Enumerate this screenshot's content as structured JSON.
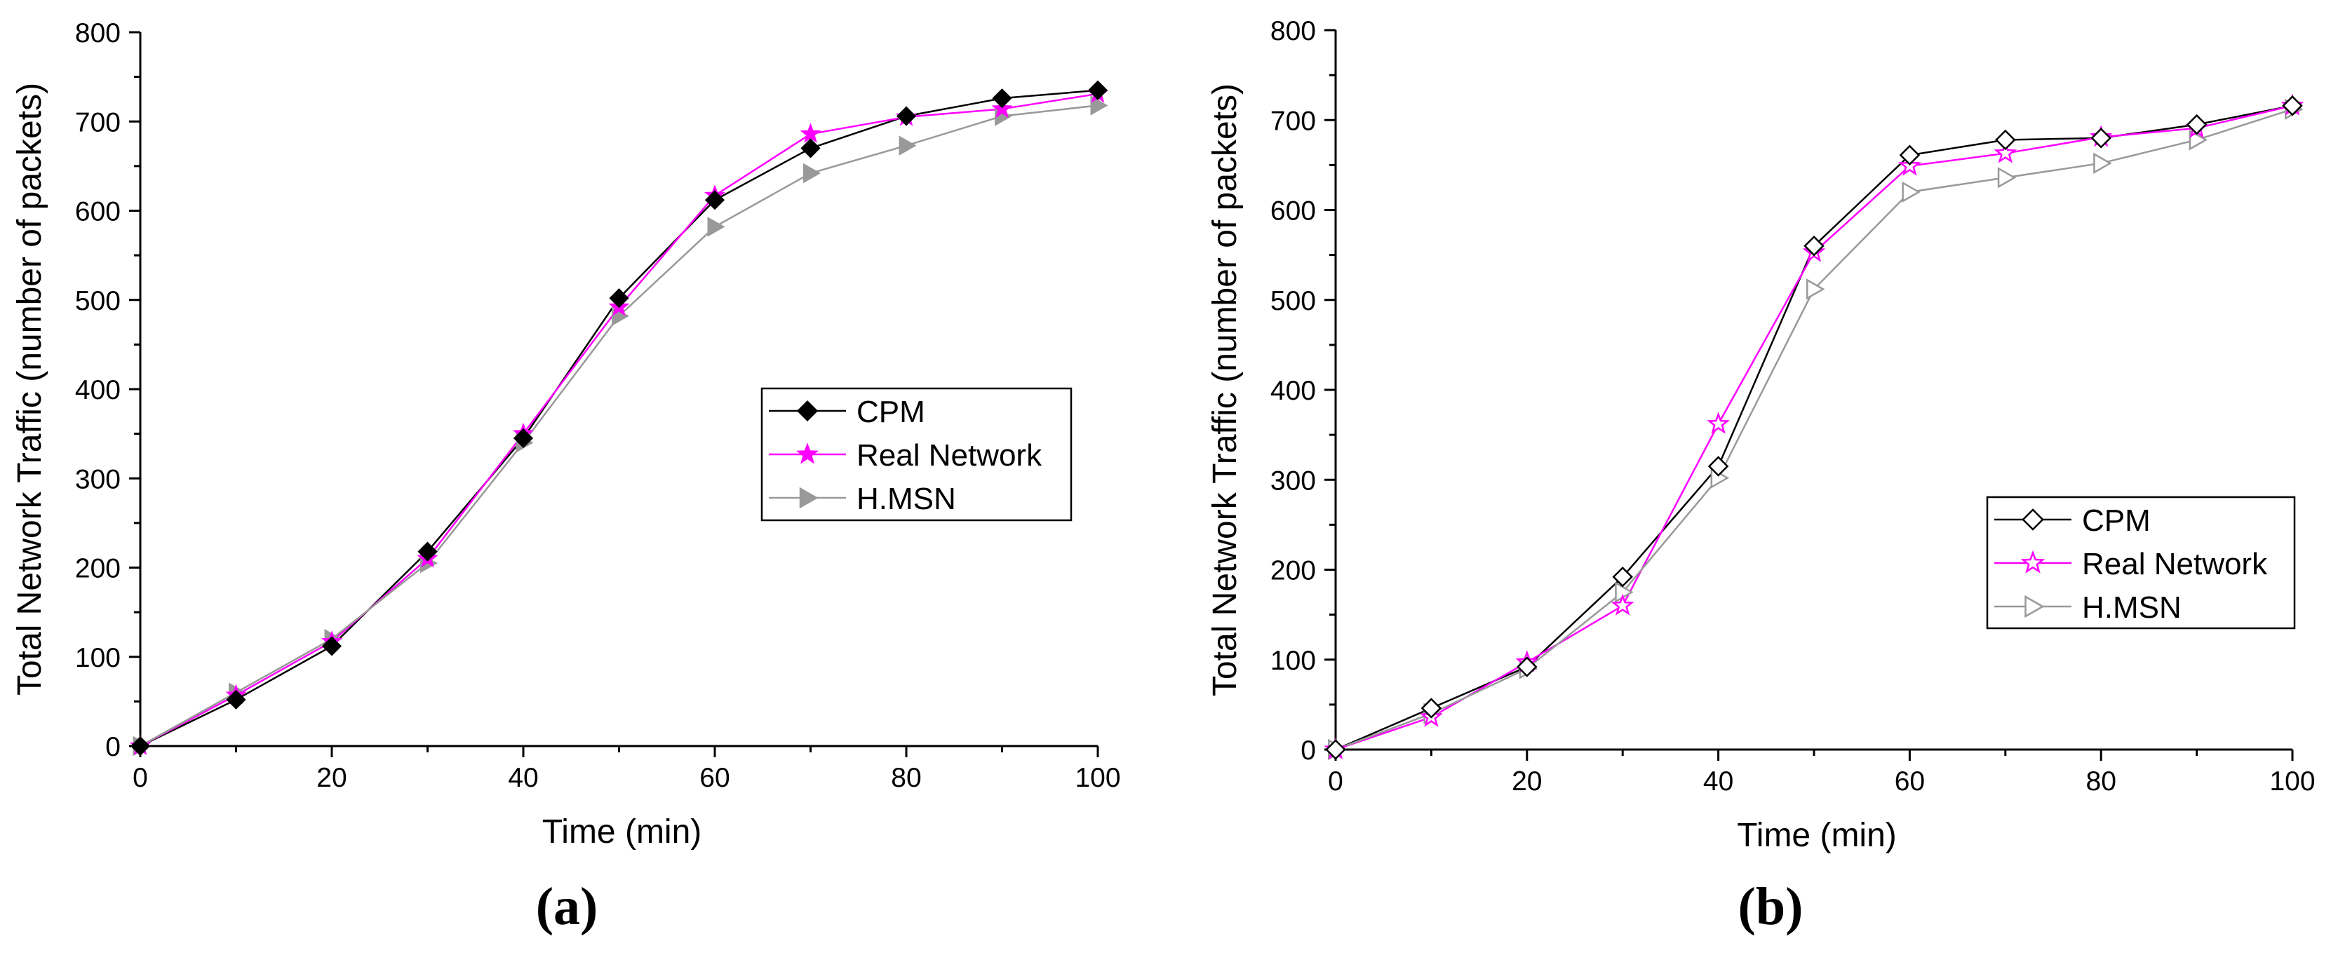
{
  "chart_data": [
    {
      "type": "line",
      "panel_label": "(a)",
      "xlabel": "Time (min)",
      "ylabel": "Total Network Traffic (number of packets)",
      "xlim": [
        0,
        100
      ],
      "ylim": [
        0,
        800
      ],
      "xticks": [
        0,
        20,
        40,
        60,
        80,
        100
      ],
      "yticks": [
        0,
        100,
        200,
        300,
        400,
        500,
        600,
        700,
        800
      ],
      "x": [
        0,
        10,
        20,
        30,
        40,
        50,
        60,
        70,
        80,
        90,
        100
      ],
      "legend_position": "center-right",
      "series": [
        {
          "name": "CPM",
          "color": "#000000",
          "marker": "diamond",
          "filled": true,
          "values": [
            0,
            52,
            112,
            218,
            345,
            502,
            612,
            670,
            706,
            726,
            735
          ]
        },
        {
          "name": "Real Network",
          "color": "#ff00ff",
          "marker": "star",
          "filled": true,
          "values": [
            0,
            57,
            117,
            210,
            350,
            492,
            617,
            686,
            705,
            714,
            731
          ]
        },
        {
          "name": "H.MSN",
          "color": "#999999",
          "marker": "triangle-right",
          "filled": true,
          "values": [
            0,
            60,
            120,
            205,
            340,
            482,
            582,
            642,
            673,
            706,
            718
          ]
        }
      ]
    },
    {
      "type": "line",
      "panel_label": "(b)",
      "xlabel": "Time (min)",
      "ylabel": "Total Network Traffic (number of packets)",
      "xlim": [
        0,
        100
      ],
      "ylim": [
        0,
        800
      ],
      "xticks": [
        0,
        20,
        40,
        60,
        80,
        100
      ],
      "yticks": [
        0,
        100,
        200,
        300,
        400,
        500,
        600,
        700,
        800
      ],
      "x": [
        0,
        10,
        20,
        30,
        40,
        50,
        60,
        70,
        80,
        90,
        100
      ],
      "legend_position": "lower-right",
      "series": [
        {
          "name": "CPM",
          "color": "#000000",
          "marker": "diamond",
          "filled": false,
          "values": [
            0,
            46,
            92,
            192,
            315,
            560,
            661,
            678,
            680,
            695,
            716
          ]
        },
        {
          "name": "Real Network",
          "color": "#ff00ff",
          "marker": "star",
          "filled": false,
          "values": [
            0,
            36,
            97,
            160,
            362,
            553,
            649,
            663,
            681,
            691,
            716
          ]
        },
        {
          "name": "H.MSN",
          "color": "#999999",
          "marker": "triangle-right",
          "filled": false,
          "values": [
            0,
            40,
            90,
            175,
            302,
            512,
            620,
            636,
            652,
            678,
            712
          ]
        }
      ]
    }
  ]
}
